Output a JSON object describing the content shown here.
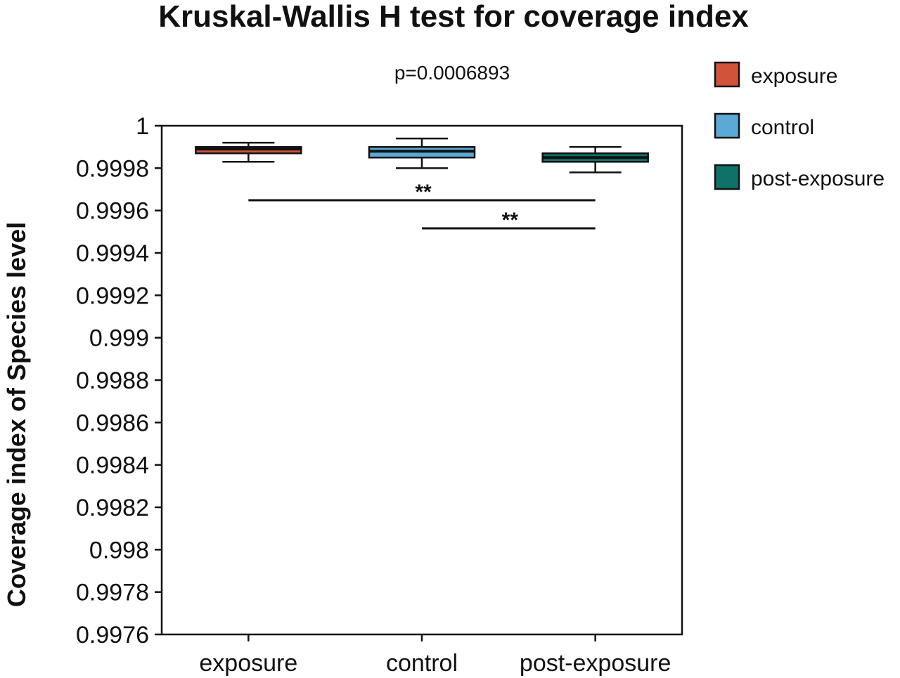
{
  "chart_data": {
    "type": "box",
    "title": "Kruskal-Wallis H test for coverage index",
    "subtitle": "p=0.0006893",
    "xlabel": "",
    "ylabel": "Coverage index of Species level",
    "ylim": [
      0.9976,
      1.0
    ],
    "yticks": [
      "0.9976",
      "0.9978",
      "0.998",
      "0.9982",
      "0.9984",
      "0.9986",
      "0.9988",
      "0.999",
      "0.9992",
      "0.9994",
      "0.9996",
      "0.9998",
      "1"
    ],
    "categories": [
      "exposure",
      "control",
      "post-exposure"
    ],
    "series": [
      {
        "name": "exposure",
        "color": "#d0533a",
        "whisker_low": 0.99983,
        "q1": 0.99987,
        "median": 0.99989,
        "q3": 0.9999,
        "whisker_high": 0.99992
      },
      {
        "name": "control",
        "color": "#5aa9d6",
        "whisker_low": 0.9998,
        "q1": 0.99985,
        "median": 0.99988,
        "q3": 0.9999,
        "whisker_high": 0.99994
      },
      {
        "name": "post-exposure",
        "color": "#0f7268",
        "whisker_low": 0.99978,
        "q1": 0.99983,
        "median": 0.99985,
        "q3": 0.99987,
        "whisker_high": 0.9999
      }
    ],
    "significance": [
      {
        "from": "exposure",
        "to": "post-exposure",
        "label": "**"
      },
      {
        "from": "control",
        "to": "post-exposure",
        "label": "**"
      }
    ],
    "legend": {
      "position": "top-right",
      "entries": [
        "exposure",
        "control",
        "post-exposure"
      ]
    },
    "grid": false
  }
}
